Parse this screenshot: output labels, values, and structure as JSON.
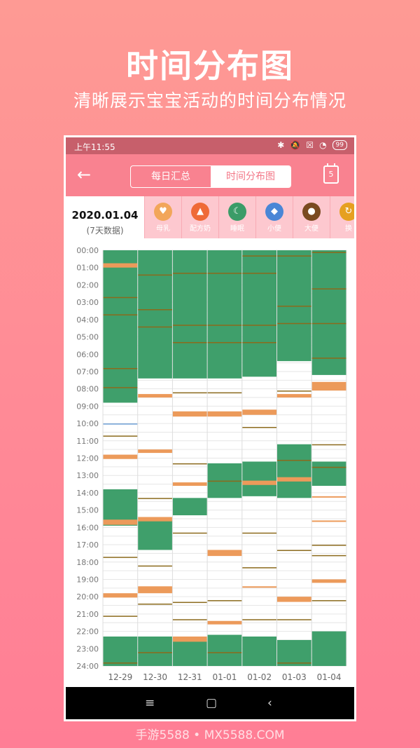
{
  "promo": {
    "title": "时间分布图",
    "subtitle": "清晰展示宝宝活动的时间分布情况",
    "watermark": "手游5588 • MX5588.COM"
  },
  "status_bar": {
    "time": "上午11:55",
    "battery": "99"
  },
  "app_bar": {
    "tabs": [
      "每日汇总",
      "时间分布图"
    ],
    "active_tab": "时间分布图",
    "calendar_day": "5"
  },
  "summary": {
    "date": "2020.01.04",
    "range_label": "(7天数据)"
  },
  "categories": [
    {
      "label": "母乳",
      "icon": "breast-icon",
      "color": "#f2a65a"
    },
    {
      "label": "配方奶",
      "icon": "bottle-icon",
      "color": "#ef6a37"
    },
    {
      "label": "睡眠",
      "icon": "moon-icon",
      "color": "#3b9c68"
    },
    {
      "label": "小便",
      "icon": "diaper-icon",
      "color": "#4a86d6"
    },
    {
      "label": "大便",
      "icon": "poop-icon",
      "color": "#7a4a20"
    },
    {
      "label": "换",
      "icon": "change-icon",
      "color": "#e6a020"
    }
  ],
  "chart_data": {
    "type": "heatmap",
    "y_labels": [
      "00:00",
      "01:00",
      "02:00",
      "03:00",
      "04:00",
      "05:00",
      "06:00",
      "07:00",
      "08:00",
      "09:00",
      "10:00",
      "11:00",
      "12:00",
      "13:00",
      "14:00",
      "15:00",
      "16:00",
      "17:00",
      "18:00",
      "19:00",
      "20:00",
      "21:00",
      "22:00",
      "23:00",
      "24:00"
    ],
    "x_labels": [
      "12-29",
      "12-30",
      "12-31",
      "01-01",
      "01-02",
      "01-03",
      "01-04"
    ],
    "ylim": [
      0,
      24
    ],
    "colors": {
      "sleep": "#3f9f6b",
      "feed": "#ec9a5a",
      "poop": "#8b6a1c",
      "pee": "#6c9fd4"
    },
    "columns": [
      {
        "day": "12-29",
        "sleep": [
          [
            0,
            8.8
          ],
          [
            13.8,
            15.9
          ],
          [
            22.3,
            24
          ]
        ],
        "feed": [
          [
            0.75,
            0.25
          ],
          [
            11.8,
            0.25
          ],
          [
            15.55,
            0.3
          ],
          [
            19.8,
            0.25
          ]
        ],
        "poop": [
          2.7,
          3.7,
          6.8,
          7.9,
          10.7,
          17.7,
          21.1,
          23.8
        ],
        "pee": [
          10.0
        ]
      },
      {
        "day": "12-30",
        "sleep": [
          [
            0,
            7.4
          ],
          [
            15.6,
            17.3
          ],
          [
            22.3,
            24
          ]
        ],
        "feed": [
          [
            8.3,
            0.2
          ],
          [
            11.5,
            0.2
          ],
          [
            15.4,
            0.25
          ],
          [
            19.4,
            0.4
          ]
        ],
        "poop": [
          1.4,
          3.4,
          4.4,
          14.3,
          18.2,
          20.4,
          23.2
        ]
      },
      {
        "day": "12-31",
        "sleep": [
          [
            0,
            7.4
          ],
          [
            14.3,
            15.3
          ],
          [
            22.4,
            24
          ]
        ],
        "feed": [
          [
            9.3,
            0.3
          ],
          [
            13.4,
            0.2
          ],
          [
            22.3,
            0.3
          ]
        ],
        "poop": [
          1.3,
          4.3,
          5.3,
          8.2,
          12.3,
          16.3,
          20.3,
          21.3
        ]
      },
      {
        "day": "01-01",
        "sleep": [
          [
            0,
            7.4
          ],
          [
            12.3,
            14.3
          ],
          [
            22.2,
            24
          ]
        ],
        "feed": [
          [
            9.3,
            0.3
          ],
          [
            17.3,
            0.35
          ],
          [
            21.4,
            0.2
          ]
        ],
        "poop": [
          1.3,
          4.3,
          5.3,
          8.2,
          13.3,
          20.2,
          23.2
        ]
      },
      {
        "day": "01-02",
        "sleep": [
          [
            0,
            7.3
          ],
          [
            12.2,
            14.2
          ],
          [
            22.3,
            24
          ]
        ],
        "feed": [
          [
            9.2,
            0.3
          ],
          [
            13.3,
            0.25
          ],
          [
            19.4,
            0.05
          ]
        ],
        "poop": [
          0.3,
          1.3,
          4.3,
          5.3,
          10.2,
          16.3,
          18.3,
          21.3
        ]
      },
      {
        "day": "01-03",
        "sleep": [
          [
            0,
            6.4
          ],
          [
            11.2,
            14.3
          ],
          [
            22.5,
            24
          ]
        ],
        "feed": [
          [
            8.3,
            0.2
          ],
          [
            13.1,
            0.25
          ],
          [
            20.0,
            0.3
          ]
        ],
        "poop": [
          0.3,
          3.2,
          4.2,
          8.1,
          12.1,
          17.3,
          21.3,
          23.8
        ]
      },
      {
        "day": "01-04",
        "sleep": [
          [
            0,
            7.2
          ],
          [
            12.2,
            13.6
          ],
          [
            22.0,
            24
          ]
        ],
        "feed": [
          [
            7.6,
            0.5
          ],
          [
            19.0,
            0.2
          ],
          [
            14.2,
            0.05
          ],
          [
            15.6,
            0.05
          ]
        ],
        "poop": [
          0.1,
          2.2,
          4.2,
          6.2,
          11.2,
          12.5,
          17.0,
          17.6,
          20.2
        ]
      }
    ]
  }
}
